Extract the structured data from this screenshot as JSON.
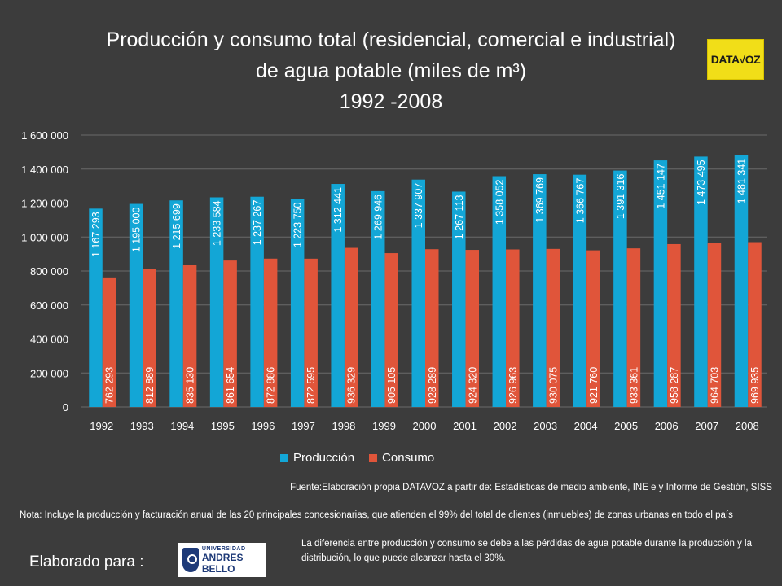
{
  "title": {
    "line1": "Producción y consumo total (residencial, comercial e industrial)",
    "line2": "de agua potable  (miles de m³)",
    "line3": "1992 -2008"
  },
  "logo": {
    "text": "DATA√OZ"
  },
  "colors": {
    "produccion": "#13a6d6",
    "consumo": "#e0553a",
    "background": "#3c3c3c",
    "grid": "#6a6a6a"
  },
  "chart_data": {
    "type": "bar",
    "title": "Producción y consumo total (residencial, comercial e industrial) de agua potable (miles de m³) 1992 -2008",
    "categories": [
      "1992",
      "1993",
      "1994",
      "1995",
      "1996",
      "1997",
      "1998",
      "1999",
      "2000",
      "2001",
      "2002",
      "2003",
      "2004",
      "2005",
      "2006",
      "2007",
      "2008"
    ],
    "series": [
      {
        "name": "Producción",
        "values": [
          1167293,
          1195000,
          1215699,
          1233584,
          1237267,
          1223750,
          1312441,
          1269946,
          1337907,
          1267113,
          1358052,
          1369769,
          1366767,
          1391316,
          1451147,
          1473495,
          1481341
        ],
        "labels": [
          "1 167 293",
          "1 195 000",
          "1 215 699",
          "1 233 584",
          "1 237 267",
          "1 223 750",
          "1 312 441",
          "1 269 946",
          "1 337 907",
          "1 267 113",
          "1 358 052",
          "1 369 769",
          "1 366 767",
          "1 391 316",
          "1 451 147",
          "1 473 495",
          "1 481 341"
        ]
      },
      {
        "name": "Consumo",
        "values": [
          762293,
          812889,
          835130,
          861654,
          872886,
          872595,
          936329,
          905105,
          928289,
          924320,
          926963,
          930075,
          921760,
          933361,
          958287,
          964703,
          969935
        ],
        "labels": [
          "762 293",
          "812 889",
          "835 130",
          "861 654",
          "872 886",
          "872 595",
          "936 329",
          "905 105",
          "928 289",
          "924 320",
          "926 963",
          "930 075",
          "921 760",
          "933 361",
          "958 287",
          "964 703",
          "969 935"
        ]
      }
    ],
    "ylim": [
      0,
      1600000
    ],
    "yticks": [
      0,
      200000,
      400000,
      600000,
      800000,
      1000000,
      1200000,
      1400000,
      1600000
    ],
    "ytick_labels": [
      "0",
      "200 000",
      "400 000",
      "600 000",
      "800 000",
      "1 000 000",
      "1 200 000",
      "1 400 000",
      "1 600 000"
    ],
    "xlabel": "",
    "ylabel": "",
    "grid": true,
    "legend_position": "bottom"
  },
  "source_text": "Fuente:Elaboración propia DATAVOZ a partir de: Estadísticas de medio ambiente, INE e y Informe de Gestión, SISS",
  "note_text": "Nota: Incluye la producción y facturación anual de las  20 principales concesionarias, que atienden el 99% del total de clientes (inmuebles) de zonas urbanas en todo el país",
  "made_for_label": "Elaborado para :",
  "uab_logo": {
    "small": "UNIVERSIDAD",
    "big": "ANDRES BELLO"
  },
  "difference_text": "La diferencia entre producción y consumo se debe a las pérdidas de agua potable durante la producción y la distribución,  lo que puede alcanzar hasta el 30%."
}
